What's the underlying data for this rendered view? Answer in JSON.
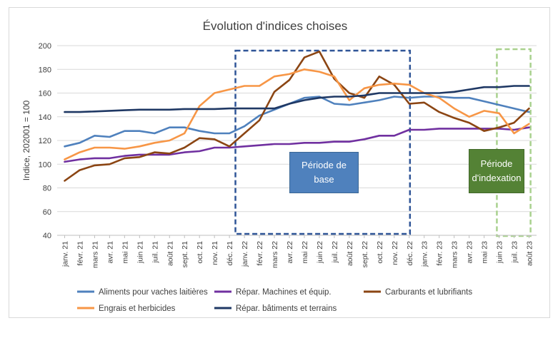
{
  "chart_data": {
    "type": "line",
    "title": "Évolution d'indices choises",
    "ylabel": "Indice, 202001 = 100",
    "xlabel": "",
    "ylim": [
      40,
      200
    ],
    "yticks": [
      40,
      60,
      80,
      100,
      120,
      140,
      160,
      180,
      200
    ],
    "grid": true,
    "legend_position": "bottom",
    "categories": [
      "janv. 21",
      "févr. 21",
      "mars 21",
      "avr. 21",
      "mai 21",
      "juin 21",
      "juil. 21",
      "août 21",
      "sept. 21",
      "oct. 21",
      "nov. 21",
      "déc. 21",
      "janv. 22",
      "févr. 22",
      "mars 22",
      "avr. 22",
      "mai 22",
      "juin 22",
      "juil. 22",
      "août 22",
      "sept. 22",
      "oct. 22",
      "nov. 22",
      "déc. 22",
      "janv. 23",
      "févr. 23",
      "mars 23",
      "avr. 23",
      "mai 23",
      "juin 23",
      "juil. 23",
      "août 23"
    ],
    "series": [
      {
        "name": "Aliments pour vaches laitières",
        "color": "#4f81bd",
        "values": [
          115,
          118,
          124,
          123,
          128,
          128,
          126,
          131,
          131,
          128,
          126,
          126,
          132,
          141,
          146,
          151,
          156,
          157,
          151,
          150,
          152,
          154,
          157,
          156,
          157,
          157,
          156,
          156,
          153,
          150,
          147,
          144
        ]
      },
      {
        "name": "Répar. Machines et équip.",
        "color": "#7030a0",
        "values": [
          102,
          104,
          105,
          105,
          107,
          108,
          108,
          108,
          110,
          111,
          114,
          114,
          115,
          116,
          117,
          117,
          118,
          118,
          119,
          119,
          121,
          124,
          124,
          129,
          129,
          130,
          130,
          130,
          130,
          130,
          129,
          131
        ]
      },
      {
        "name": "Carburants et lubrifiants",
        "color": "#8b4513",
        "values": [
          86,
          95,
          99,
          100,
          105,
          106,
          110,
          109,
          114,
          122,
          121,
          115,
          126,
          137,
          161,
          171,
          190,
          195,
          172,
          160,
          156,
          174,
          167,
          151,
          152,
          144,
          139,
          135,
          128,
          131,
          135,
          147
        ]
      },
      {
        "name": "Engrais et herbicides",
        "color": "#f79646",
        "values": [
          104,
          110,
          114,
          114,
          113,
          115,
          118,
          120,
          126,
          149,
          160,
          163,
          166,
          166,
          174,
          176,
          180,
          178,
          174,
          154,
          164,
          167,
          168,
          167,
          160,
          156,
          147,
          140,
          145,
          143,
          126,
          134
        ]
      },
      {
        "name": "Répar. bâtiments et terrains",
        "color": "#1f3864",
        "values": [
          144,
          144,
          144.5,
          145,
          145.5,
          146,
          146,
          146,
          146.5,
          146.5,
          146.5,
          147,
          147,
          147,
          147,
          151,
          154,
          156,
          157,
          157,
          158,
          160,
          160,
          160,
          160,
          160,
          161,
          163,
          165,
          165,
          166,
          166
        ]
      }
    ],
    "annotations": {
      "base_period": {
        "label": "Période de\nbase",
        "start": "janv. 22",
        "end": "déc. 22"
      },
      "index_period": {
        "label": "Période\nd'indexation",
        "start": "juin 23",
        "end": "août 23"
      }
    }
  }
}
